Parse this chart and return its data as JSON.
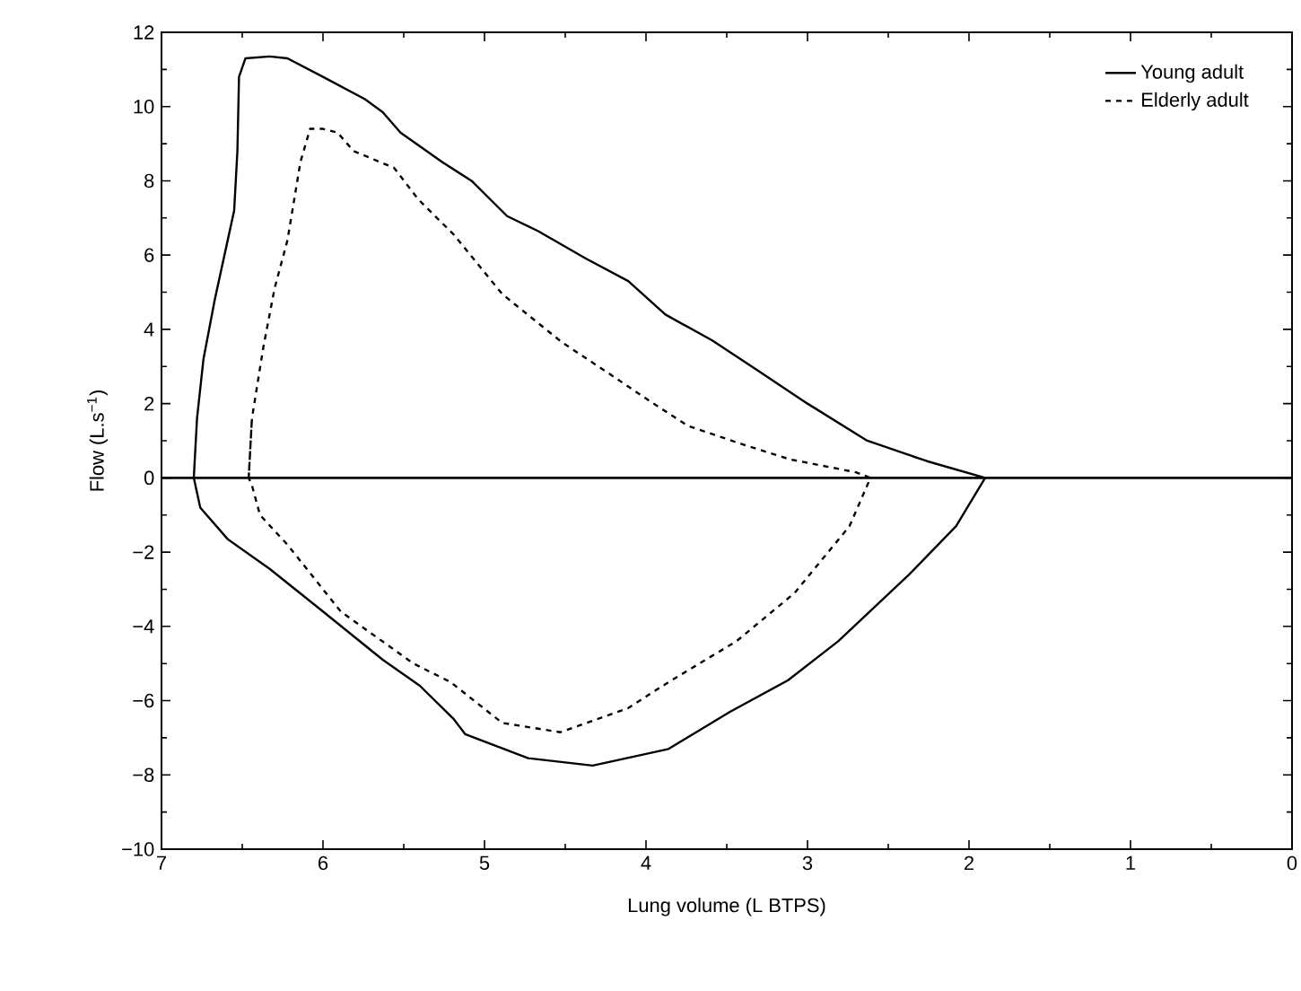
{
  "chart_data": {
    "type": "line",
    "xlabel": "Lung volume (L BTPS)",
    "ylabel": "Flow (L.s$^{−1}$)",
    "xlim": [
      7,
      0
    ],
    "ylim": [
      -10,
      12
    ],
    "xticks": [
      7,
      6,
      5,
      4,
      3,
      2,
      1,
      0
    ],
    "yticks": [
      {
        "value": -10,
        "label": "−10"
      },
      {
        "value": -8,
        "label": "−8"
      },
      {
        "value": -6,
        "label": "−6"
      },
      {
        "value": -4,
        "label": "−4"
      },
      {
        "value": -2,
        "label": "−2"
      },
      0,
      2,
      4,
      6,
      8,
      10,
      12
    ],
    "legend": "top right",
    "grid": false,
    "marker": "none",
    "ref_lines": [
      {
        "axis": "y",
        "value": 0
      }
    ],
    "series": [
      {
        "name": "Young adult",
        "color": "#000000",
        "line_style": "solid",
        "x": [
          6.8,
          6.78,
          6.74,
          6.67,
          6.59,
          6.55,
          6.53,
          6.52,
          6.48,
          6.33,
          6.22,
          6.0,
          5.74,
          5.63,
          5.52,
          5.26,
          5.08,
          4.86,
          4.67,
          4.37,
          4.11,
          3.88,
          3.59,
          3.31,
          3.0,
          2.63,
          2.26,
          1.9,
          2.08,
          2.37,
          2.81,
          3.12,
          3.48,
          3.86,
          4.33,
          4.73,
          5.12,
          5.19,
          5.4,
          5.63,
          6.0,
          6.33,
          6.59,
          6.76,
          6.8,
          6.78
        ],
        "values": [
          0,
          1.6,
          3.2,
          4.8,
          6.4,
          7.2,
          8.8,
          10.8,
          11.3,
          11.35,
          11.3,
          10.8,
          10.2,
          9.85,
          9.3,
          8.5,
          8.0,
          7.05,
          6.65,
          5.9,
          5.3,
          4.4,
          3.7,
          2.9,
          2.0,
          1.0,
          0.45,
          0,
          -1.3,
          -2.6,
          -4.4,
          -5.45,
          -6.3,
          -7.3,
          -7.75,
          -7.55,
          -6.9,
          -6.5,
          -5.6,
          -4.9,
          -3.6,
          -2.45,
          -1.65,
          -0.8,
          0,
          1.6
        ]
      },
      {
        "name": "Elderly adult",
        "color": "#000000",
        "line_style": "dashed",
        "x": [
          6.46,
          6.44,
          6.37,
          6.3,
          6.22,
          6.14,
          6.08,
          6.0,
          5.91,
          5.81,
          5.56,
          5.41,
          5.19,
          4.89,
          4.52,
          4.26,
          3.97,
          3.74,
          3.4,
          3.11,
          2.7,
          2.61,
          2.74,
          3.08,
          3.44,
          3.86,
          4.11,
          4.53,
          4.89,
          5.21,
          5.44,
          5.89,
          6.22,
          6.39,
          6.44,
          6.46,
          6.44
        ],
        "values": [
          0,
          1.6,
          3.5,
          5.1,
          6.4,
          8.5,
          9.4,
          9.4,
          9.3,
          8.8,
          8.35,
          7.5,
          6.55,
          4.95,
          3.65,
          2.9,
          2.05,
          1.4,
          0.9,
          0.5,
          0.15,
          0,
          -1.3,
          -3.1,
          -4.4,
          -5.5,
          -6.2,
          -6.85,
          -6.6,
          -5.5,
          -5.0,
          -3.6,
          -1.8,
          -1.0,
          -0.2,
          0,
          1.6
        ]
      }
    ]
  }
}
